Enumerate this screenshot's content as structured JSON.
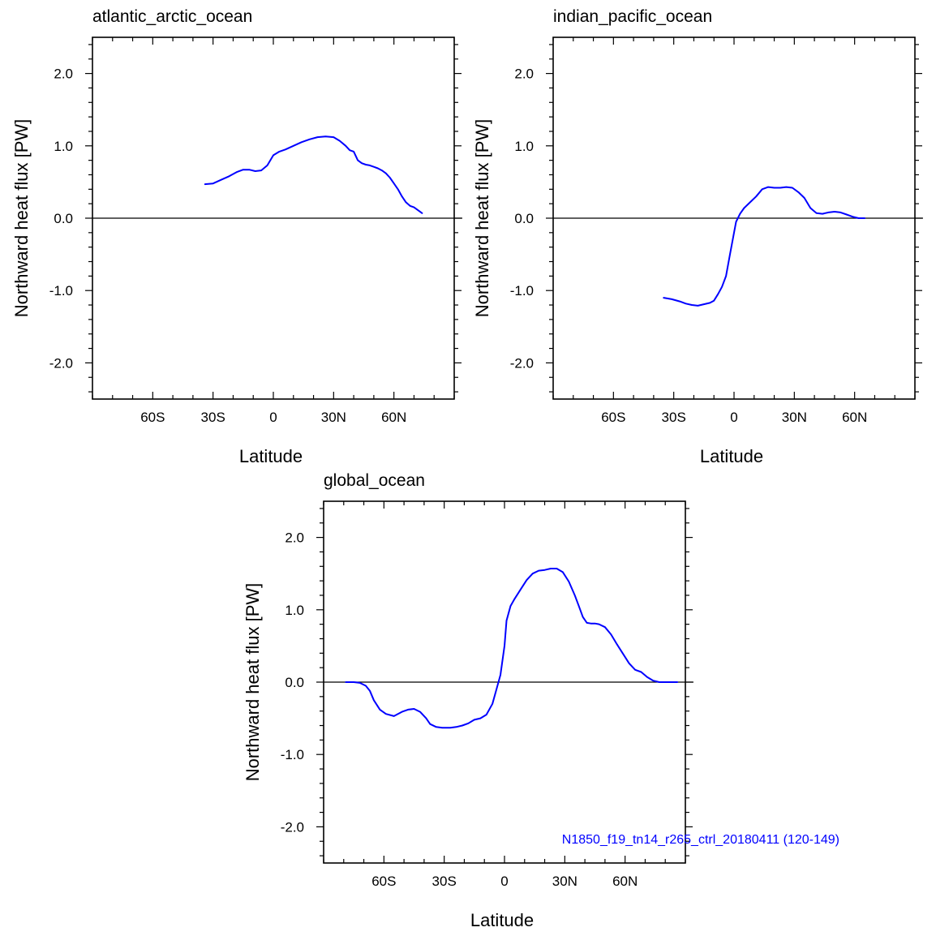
{
  "chart_data": [
    {
      "type": "line",
      "title": "atlantic_arctic_ocean",
      "xlabel": "Latitude",
      "ylabel": "Northward heat flux [PW]",
      "xlim": [
        -90,
        90
      ],
      "ylim": [
        -2.5,
        2.5
      ],
      "x_ticks": [
        -60,
        -30,
        0,
        30,
        60
      ],
      "x_tick_labels": [
        "60S",
        "30S",
        "0",
        "30N",
        "60N"
      ],
      "y_ticks": [
        2.0,
        1.0,
        0.0,
        -1.0,
        -2.0
      ],
      "y_tick_labels": [
        "2.0",
        "1.0",
        "0.0",
        "-1.0",
        "-2.0"
      ],
      "zero_line": true,
      "grid": false,
      "series": [
        {
          "color": "#0000ff",
          "x": [
            -34,
            -30,
            -26,
            -22,
            -18,
            -15,
            -12,
            -9,
            -6,
            -3,
            0,
            3,
            6,
            10,
            14,
            18,
            22,
            26,
            30,
            33,
            36,
            38,
            40,
            42,
            44,
            46,
            48,
            50,
            52,
            54,
            56,
            58,
            60,
            62,
            64,
            66,
            68,
            70,
            72,
            74
          ],
          "y": [
            0.47,
            0.48,
            0.53,
            0.58,
            0.64,
            0.67,
            0.67,
            0.65,
            0.66,
            0.73,
            0.87,
            0.92,
            0.95,
            1.0,
            1.05,
            1.09,
            1.12,
            1.13,
            1.12,
            1.07,
            1.0,
            0.94,
            0.92,
            0.8,
            0.76,
            0.74,
            0.73,
            0.71,
            0.69,
            0.66,
            0.62,
            0.56,
            0.48,
            0.4,
            0.3,
            0.22,
            0.17,
            0.15,
            0.11,
            0.07
          ]
        }
      ]
    },
    {
      "type": "line",
      "title": "indian_pacific_ocean",
      "xlabel": "Latitude",
      "ylabel": "Northward heat flux [PW]",
      "xlim": [
        -90,
        90
      ],
      "ylim": [
        -2.5,
        2.5
      ],
      "x_ticks": [
        -60,
        -30,
        0,
        30,
        60
      ],
      "x_tick_labels": [
        "60S",
        "30S",
        "0",
        "30N",
        "60N"
      ],
      "y_ticks": [
        2.0,
        1.0,
        0.0,
        -1.0,
        -2.0
      ],
      "y_tick_labels": [
        "2.0",
        "1.0",
        "0.0",
        "-1.0",
        "-2.0"
      ],
      "zero_line": true,
      "grid": false,
      "series": [
        {
          "color": "#0000ff",
          "x": [
            -35,
            -31,
            -27,
            -24,
            -21,
            -18,
            -15,
            -12,
            -10,
            -8,
            -6,
            -4,
            -2,
            0,
            1,
            3,
            5,
            8,
            11,
            14,
            17,
            20,
            23,
            26,
            29,
            32,
            35,
            38,
            41,
            44,
            47,
            50,
            53,
            56,
            59,
            62,
            65
          ],
          "y": [
            -1.1,
            -1.12,
            -1.15,
            -1.18,
            -1.2,
            -1.21,
            -1.19,
            -1.17,
            -1.14,
            -1.05,
            -0.95,
            -0.8,
            -0.5,
            -0.2,
            -0.05,
            0.06,
            0.14,
            0.22,
            0.3,
            0.4,
            0.43,
            0.42,
            0.42,
            0.43,
            0.42,
            0.36,
            0.28,
            0.14,
            0.07,
            0.06,
            0.08,
            0.09,
            0.08,
            0.05,
            0.02,
            0.0,
            0.0
          ]
        }
      ]
    },
    {
      "type": "line",
      "title": "global_ocean",
      "xlabel": "Latitude",
      "ylabel": "Northward heat flux [PW]",
      "xlim": [
        -90,
        90
      ],
      "ylim": [
        -2.5,
        2.5
      ],
      "x_ticks": [
        -60,
        -30,
        0,
        30,
        60
      ],
      "x_tick_labels": [
        "60S",
        "30S",
        "0",
        "30N",
        "60N"
      ],
      "y_ticks": [
        2.0,
        1.0,
        0.0,
        -1.0,
        -2.0
      ],
      "y_tick_labels": [
        "2.0",
        "1.0",
        "0.0",
        "-1.0",
        "-2.0"
      ],
      "zero_line": true,
      "grid": false,
      "annotation": "N1850_f19_tn14_r265_ctrl_20180411 (120-149)",
      "series": [
        {
          "color": "#0000ff",
          "x": [
            -79,
            -75,
            -72,
            -69,
            -67,
            -65,
            -62,
            -59,
            -55,
            -51,
            -48,
            -45,
            -42,
            -39,
            -37,
            -34,
            -31,
            -27,
            -24,
            -21,
            -18,
            -15,
            -12,
            -9,
            -6,
            -4,
            -2,
            0,
            1,
            3,
            5,
            8,
            11,
            14,
            17,
            20,
            23,
            26,
            29,
            32,
            35,
            37,
            39,
            41,
            43,
            45,
            47,
            50,
            53,
            56,
            59,
            62,
            65,
            68,
            71,
            74,
            77,
            80,
            83,
            86
          ],
          "y": [
            0.0,
            0.0,
            -0.01,
            -0.05,
            -0.12,
            -0.25,
            -0.38,
            -0.44,
            -0.47,
            -0.41,
            -0.38,
            -0.37,
            -0.41,
            -0.5,
            -0.58,
            -0.62,
            -0.63,
            -0.63,
            -0.62,
            -0.6,
            -0.57,
            -0.52,
            -0.5,
            -0.45,
            -0.3,
            -0.1,
            0.1,
            0.5,
            0.85,
            1.05,
            1.15,
            1.28,
            1.41,
            1.5,
            1.54,
            1.55,
            1.57,
            1.57,
            1.52,
            1.39,
            1.2,
            1.05,
            0.9,
            0.82,
            0.81,
            0.81,
            0.8,
            0.76,
            0.66,
            0.52,
            0.39,
            0.26,
            0.17,
            0.14,
            0.07,
            0.02,
            0.0,
            0.0,
            0.0,
            0.0
          ]
        }
      ]
    }
  ]
}
